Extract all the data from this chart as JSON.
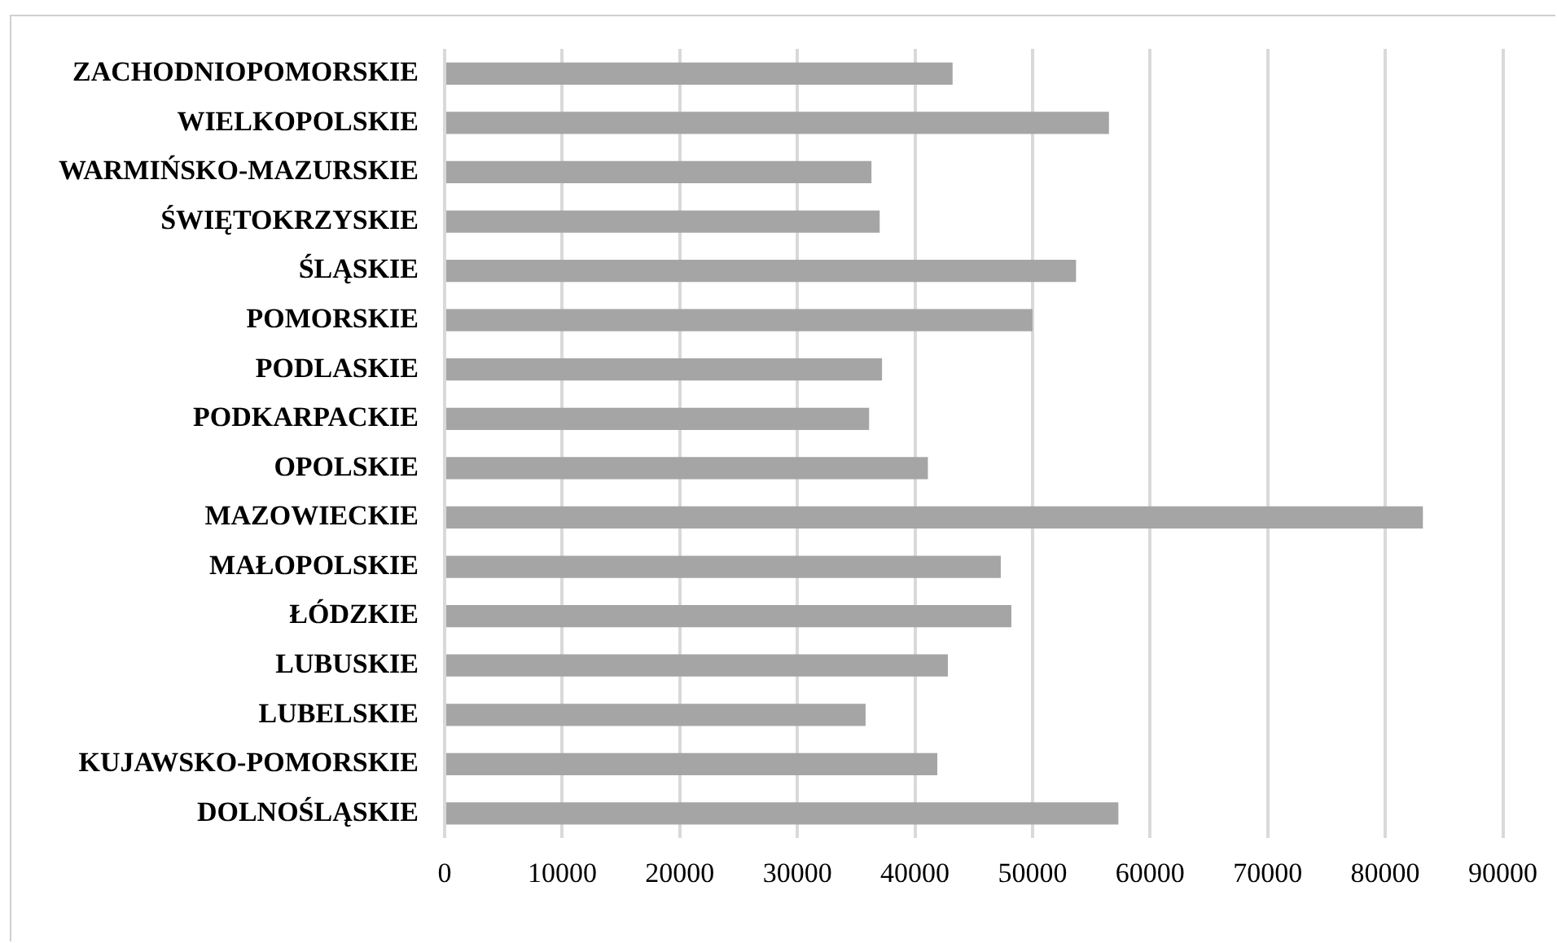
{
  "chart_data": {
    "type": "bar",
    "orientation": "horizontal",
    "categories": [
      "ZACHODNIOPOMORSKIE",
      "WIELKOPOLSKIE",
      "WARMIŃSKO-MAZURSKIE",
      "ŚWIĘTOKRZYSKIE",
      "ŚLĄSKIE",
      "POMORSKIE",
      "PODLASKIE",
      "PODKARPACKIE",
      "OPOLSKIE",
      "MAZOWIECKIE",
      "MAŁOPOLSKIE",
      "ŁÓDZKIE",
      "LUBUSKIE",
      "LUBELSKIE",
      "KUJAWSKO-POMORSKIE",
      "DOLNOŚLĄSKIE"
    ],
    "values": [
      43200,
      56500,
      36300,
      37000,
      53700,
      50000,
      37200,
      36100,
      41100,
      83200,
      47300,
      48200,
      42800,
      35800,
      41900,
      57300
    ],
    "color": "#a5a5a5",
    "xlim": [
      0,
      90000
    ],
    "xticks": [
      0,
      10000,
      20000,
      30000,
      40000,
      50000,
      60000,
      70000,
      80000,
      90000
    ],
    "grid": "x"
  }
}
